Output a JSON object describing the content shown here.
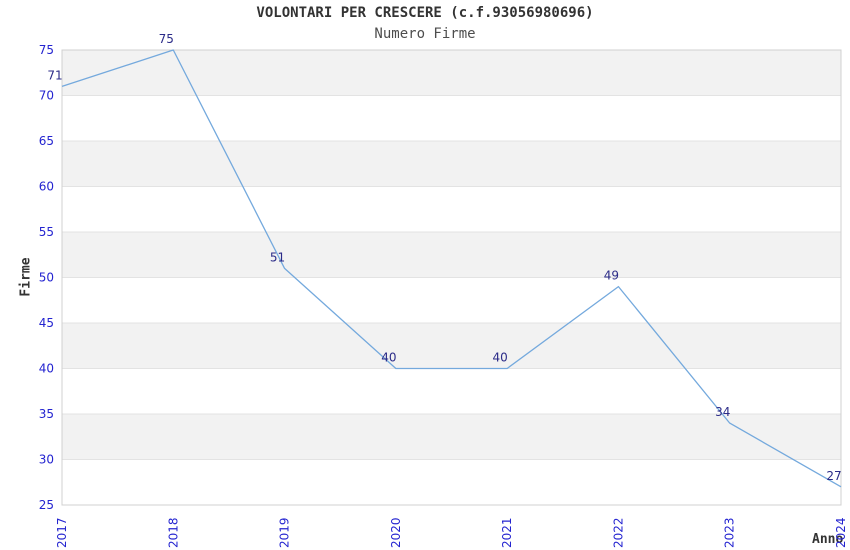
{
  "title": "VOLONTARI PER CRESCERE (c.f.93056980696)",
  "subtitle": "Numero Firme",
  "chart_data": {
    "type": "line",
    "x": [
      "2017",
      "2018",
      "2019",
      "2020",
      "2021",
      "2022",
      "2023",
      "2024"
    ],
    "values": [
      71,
      75,
      51,
      40,
      40,
      49,
      34,
      27
    ],
    "title": "VOLONTARI PER CRESCERE (c.f.93056980696)",
    "subtitle": "Numero Firme",
    "xlabel": "Anno",
    "ylabel": "Firme",
    "ylim": [
      25,
      75
    ],
    "ytick_step": 5,
    "grid": true,
    "legend": "none",
    "colors": {
      "line": "#74a9dd",
      "band": "#f2f2f2",
      "band_alt": "#ffffff",
      "grid": "#e3e3e3",
      "border": "#d0d0d0",
      "tick_label": "#2424d0",
      "data_label": "#2b2b88"
    }
  }
}
